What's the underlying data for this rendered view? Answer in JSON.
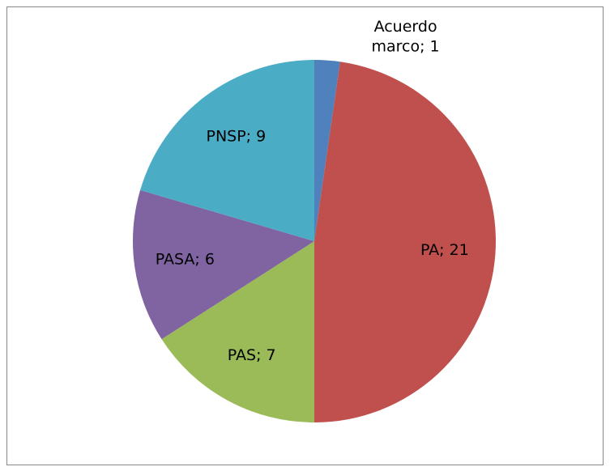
{
  "chart_data": {
    "type": "pie",
    "categories": [
      "Acuerdo marco",
      "PA",
      "PAS",
      "PASA",
      "PNSP"
    ],
    "values": [
      1,
      21,
      7,
      6,
      9
    ],
    "value_labels": [
      "Acuerdo marco; 1",
      "PA; 21",
      "PAS; 7",
      "PASA; 6",
      "PNSP; 9"
    ],
    "colors": [
      "#4f81bd",
      "#c0504d",
      "#9bbb59",
      "#8064a2",
      "#4bacc6"
    ]
  }
}
